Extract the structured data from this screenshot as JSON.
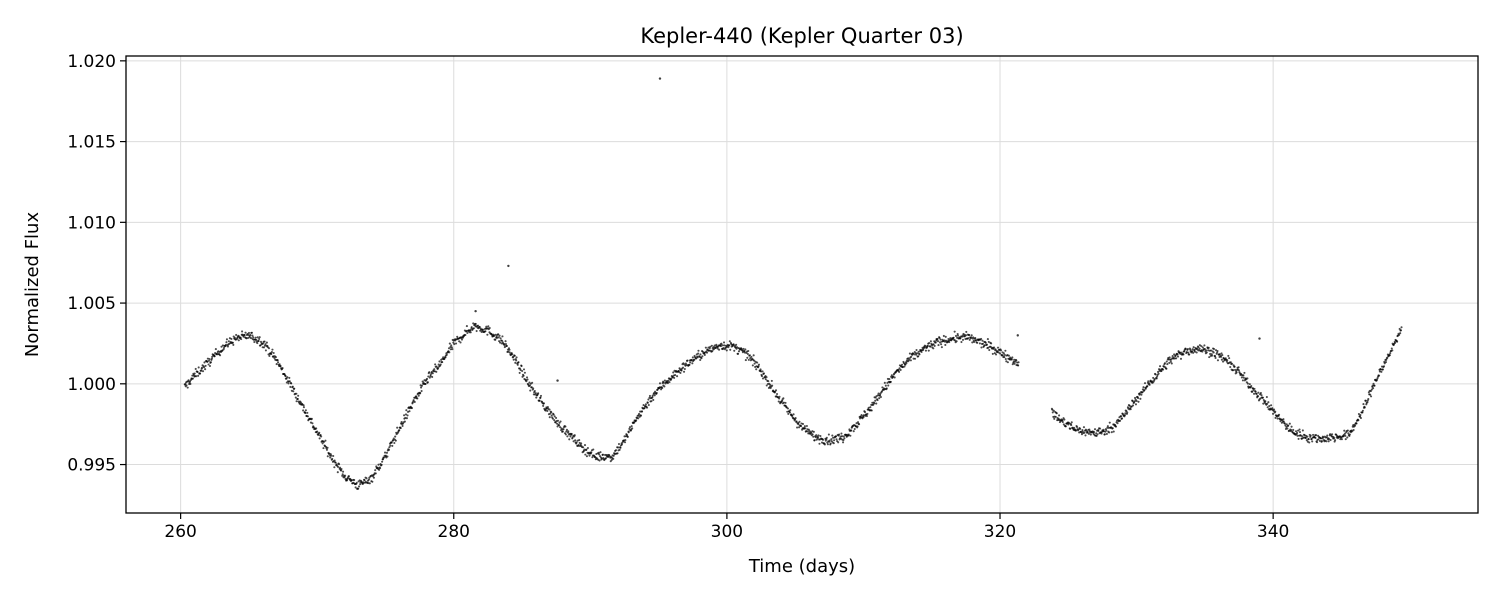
{
  "chart_data": {
    "type": "scatter",
    "title": "Kepler-440 (Kepler Quarter 03)",
    "xlabel": "Time (days)",
    "ylabel": "Normalized Flux",
    "xlim": [
      256,
      355
    ],
    "ylim": [
      0.992,
      1.0203
    ],
    "xticks": [
      260,
      280,
      300,
      320,
      340
    ],
    "yticks": [
      0.995,
      1.0,
      1.005,
      1.01,
      1.015,
      1.02
    ],
    "xtick_labels": [
      "260",
      "280",
      "300",
      "320",
      "340"
    ],
    "ytick_labels": [
      "0.995",
      "1.000",
      "1.005",
      "1.010",
      "1.015",
      "1.020"
    ],
    "grid": true,
    "marker_color": "#000000",
    "series": [
      {
        "x": [
          260.3,
          261.0,
          262.0,
          263.0,
          264.0,
          265.0,
          266.0,
          267.0,
          268.0,
          269.0,
          270.0,
          271.0,
          272.0,
          273.0,
          274.0,
          275.0,
          276.0,
          277.0,
          278.0,
          279.0,
          280.0,
          281.5,
          282.5,
          283.5,
          284.5,
          285.5,
          286.5,
          287.5,
          288.5,
          289.5,
          290.4,
          291.6,
          292.5,
          293.5,
          294.5,
          295.5,
          296.5,
          297.5,
          298.5,
          299.5,
          300.5,
          301.5,
          302.5,
          303.5,
          304.5,
          305.5,
          306.5,
          307.5,
          308.5,
          309.5,
          310.5,
          311.5,
          312.5,
          313.5,
          314.5,
          315.5,
          316.5,
          317.5,
          318.5,
          319.5,
          320.5,
          321.4,
          323.8,
          324.5,
          325.5,
          326.5,
          327.5,
          328.5,
          329.5,
          330.5,
          331.5,
          332.5,
          333.5,
          334.5,
          335.5,
          336.5,
          337.5,
          338.5,
          339.5,
          340.5,
          341.5,
          342.5,
          343.5,
          344.5,
          345.5,
          346.5,
          347.5,
          348.5,
          349.4
        ],
        "y": [
          0.9998,
          1.0005,
          1.0013,
          1.0022,
          1.0028,
          1.003,
          1.0026,
          1.0015,
          1.0,
          0.9985,
          0.997,
          0.9955,
          0.9943,
          0.9937,
          0.9942,
          0.9955,
          0.9972,
          0.9988,
          1.0002,
          1.0012,
          1.0025,
          1.0036,
          1.0033,
          1.0027,
          1.0015,
          1.0,
          0.9988,
          0.9977,
          0.9968,
          0.996,
          0.9955,
          0.9955,
          0.9965,
          0.998,
          0.9992,
          1.0001,
          1.0008,
          1.0015,
          1.002,
          1.0024,
          1.0023,
          1.0018,
          1.0008,
          0.9995,
          0.9983,
          0.9973,
          0.9967,
          0.9965,
          0.9967,
          0.9975,
          0.9985,
          0.9997,
          1.0008,
          1.0016,
          1.0022,
          1.0026,
          1.0028,
          1.0029,
          1.0026,
          1.0022,
          1.0017,
          1.0013,
          0.9982,
          0.9977,
          0.9972,
          0.997,
          0.997,
          0.9975,
          0.9985,
          0.9996,
          1.0006,
          1.0015,
          1.002,
          1.0022,
          1.002,
          1.0015,
          1.0007,
          0.9997,
          0.9988,
          0.9978,
          0.997,
          0.9967,
          0.9966,
          0.9967,
          0.9968,
          0.9982,
          1.0002,
          1.0018,
          1.0035
        ]
      }
    ],
    "outliers": [
      {
        "x": 295.1,
        "y": 1.0189
      },
      {
        "x": 284.0,
        "y": 1.0073
      },
      {
        "x": 287.6,
        "y": 1.0002
      },
      {
        "x": 281.6,
        "y": 1.0045
      },
      {
        "x": 321.3,
        "y": 1.003
      },
      {
        "x": 339.0,
        "y": 1.0028
      }
    ]
  }
}
